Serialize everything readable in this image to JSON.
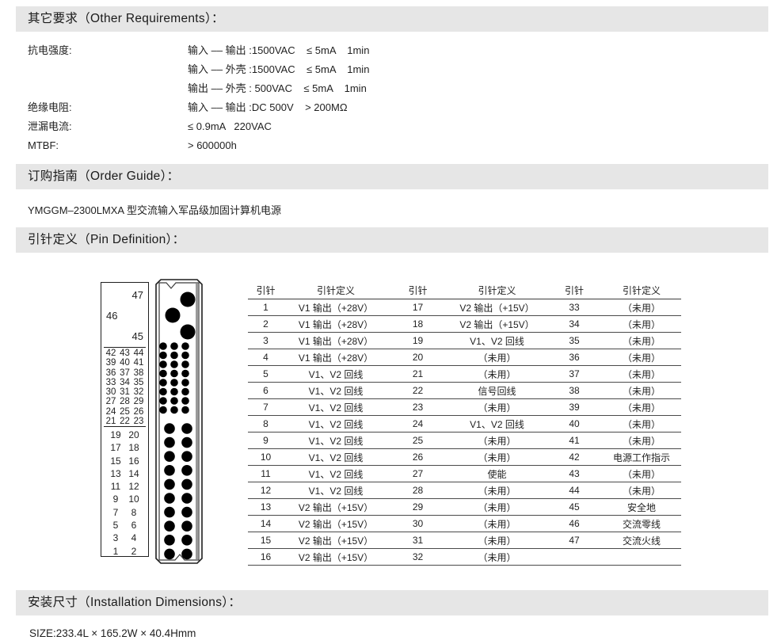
{
  "colors": {
    "bar_bg": "#e6e6e6",
    "text": "#1f1f1f",
    "table_line": "#4a4a4a"
  },
  "sections": {
    "other_requirements": {
      "title": "其它要求（Other Requirements）：",
      "rows": [
        {
          "label": "抗电强度:",
          "value": "输入 –– 输出 :1500VAC    ≤ 5mA    1min"
        },
        {
          "label": "",
          "value": "输入 –– 外壳 :1500VAC    ≤ 5mA    1min"
        },
        {
          "label": "",
          "value": "输出 –– 外壳 : 500VAC    ≤ 5mA    1min"
        },
        {
          "label": "绝缘电阻:",
          "value": "输入 –– 输出 :DC 500V    > 200MΩ"
        },
        {
          "label": "泄漏电流:",
          "value": "≤ 0.9mA   220VAC"
        },
        {
          "label": "MTBF:",
          "value": "> 600000h"
        }
      ]
    },
    "order_guide": {
      "title": "订购指南（Order Guide）：",
      "text": "YMGGM–2300LMXA 型交流输入军品级加固计算机电源"
    },
    "pin_definition": {
      "title": "引针定义（Pin Definition）：",
      "pin_map": {
        "singles": [
          {
            "num": "47",
            "align": "right"
          },
          {
            "num": "46",
            "align": "left"
          },
          {
            "num": "45",
            "align": "right"
          }
        ],
        "triple_rows": [
          [
            "42",
            "43",
            "44"
          ],
          [
            "39",
            "40",
            "41"
          ],
          [
            "36",
            "37",
            "38"
          ],
          [
            "33",
            "34",
            "35"
          ],
          [
            "30",
            "31",
            "32"
          ],
          [
            "27",
            "28",
            "29"
          ],
          [
            "24",
            "25",
            "26"
          ],
          [
            "21",
            "22",
            "23"
          ]
        ],
        "pair_rows": [
          [
            "19",
            "20"
          ],
          [
            "17",
            "18"
          ],
          [
            "15",
            "16"
          ],
          [
            "13",
            "14"
          ],
          [
            "11",
            "12"
          ],
          [
            "9",
            "10"
          ],
          [
            "7",
            "8"
          ],
          [
            "5",
            "6"
          ],
          [
            "3",
            "4"
          ],
          [
            "1",
            "2"
          ]
        ]
      },
      "table": {
        "headers": [
          "引针",
          "引针定义",
          "引针",
          "引针定义",
          "引针",
          "引针定义"
        ],
        "groups": [
          [
            {
              "pin": "1",
              "def": "V1 输出（+28V）"
            },
            {
              "pin": "2",
              "def": "V1 输出（+28V）"
            },
            {
              "pin": "3",
              "def": "V1 输出（+28V）"
            },
            {
              "pin": "4",
              "def": "V1 输出（+28V）"
            },
            {
              "pin": "5",
              "def": "V1、V2 回线"
            },
            {
              "pin": "6",
              "def": "V1、V2 回线"
            },
            {
              "pin": "7",
              "def": "V1、V2 回线"
            },
            {
              "pin": "8",
              "def": "V1、V2 回线"
            },
            {
              "pin": "9",
              "def": "V1、V2 回线"
            },
            {
              "pin": "10",
              "def": "V1、V2 回线"
            },
            {
              "pin": "11",
              "def": "V1、V2 回线"
            },
            {
              "pin": "12",
              "def": "V1、V2 回线"
            },
            {
              "pin": "13",
              "def": "V2 输出（+15V）"
            },
            {
              "pin": "14",
              "def": "V2 输出（+15V）"
            },
            {
              "pin": "15",
              "def": "V2 输出（+15V）"
            },
            {
              "pin": "16",
              "def": "V2 输出（+15V）"
            }
          ],
          [
            {
              "pin": "17",
              "def": "V2 输出（+15V）"
            },
            {
              "pin": "18",
              "def": "V2 输出（+15V）"
            },
            {
              "pin": "19",
              "def": "V1、V2 回线"
            },
            {
              "pin": "20",
              "def": "（未用）"
            },
            {
              "pin": "21",
              "def": "（未用）"
            },
            {
              "pin": "22",
              "def": "信号回线"
            },
            {
              "pin": "23",
              "def": "（未用）"
            },
            {
              "pin": "24",
              "def": "V1、V2 回线"
            },
            {
              "pin": "25",
              "def": "（未用）"
            },
            {
              "pin": "26",
              "def": "（未用）"
            },
            {
              "pin": "27",
              "def": "使能"
            },
            {
              "pin": "28",
              "def": "（未用）"
            },
            {
              "pin": "29",
              "def": "（未用）"
            },
            {
              "pin": "30",
              "def": "（未用）"
            },
            {
              "pin": "31",
              "def": "（未用）"
            },
            {
              "pin": "32",
              "def": "（未用）"
            }
          ],
          [
            {
              "pin": "33",
              "def": "（未用）"
            },
            {
              "pin": "34",
              "def": "（未用）"
            },
            {
              "pin": "35",
              "def": "（未用）"
            },
            {
              "pin": "36",
              "def": "（未用）"
            },
            {
              "pin": "37",
              "def": "（未用）"
            },
            {
              "pin": "38",
              "def": "（未用）"
            },
            {
              "pin": "39",
              "def": "（未用）"
            },
            {
              "pin": "40",
              "def": "（未用）"
            },
            {
              "pin": "41",
              "def": "（未用）"
            },
            {
              "pin": "42",
              "def": "电源工作指示"
            },
            {
              "pin": "43",
              "def": "（未用）"
            },
            {
              "pin": "44",
              "def": "（未用）"
            },
            {
              "pin": "45",
              "def": "安全地"
            },
            {
              "pin": "46",
              "def": "交流零线"
            },
            {
              "pin": "47",
              "def": "交流火线"
            }
          ]
        ]
      }
    },
    "installation": {
      "title": "安装尺寸（Installation Dimensions）：",
      "text": "SIZE:233.4L × 165.2W × 40.4Hmm"
    }
  }
}
